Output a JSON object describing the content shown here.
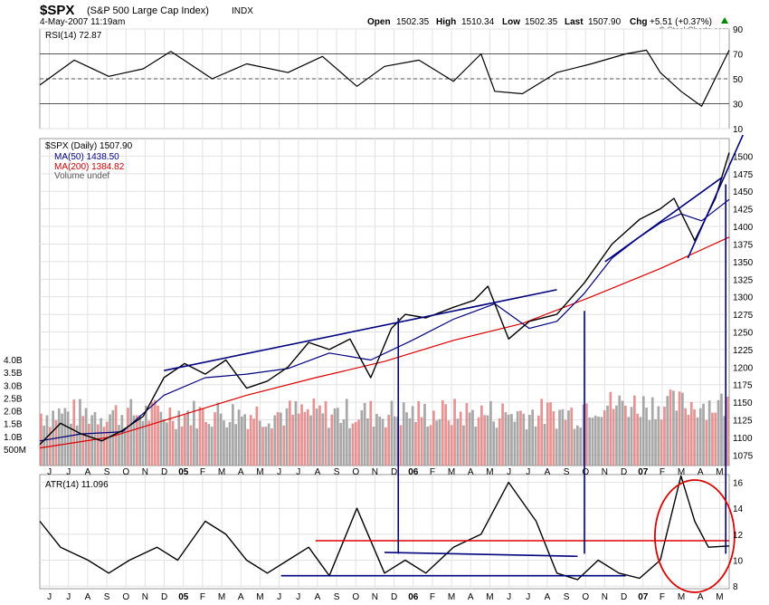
{
  "header": {
    "symbol": "$SPX",
    "name": "(S&P 500 Large Cap Index)",
    "exchange": "INDX",
    "timestamp": "4-May-2007 11:19am",
    "open_label": "Open",
    "open": "1502.35",
    "high_label": "High",
    "high": "1510.34",
    "low_label": "Low",
    "low": "1502.35",
    "last_label": "Last",
    "last": "1507.90",
    "chg_label": "Chg",
    "chg": "+5.51 (+0.37%)",
    "brand": "© StockCharts.com"
  },
  "colors": {
    "price_up": "#000000",
    "price_down": "#cc0000",
    "ma50": "#000080",
    "ma200": "#dd0000",
    "volume": "#999999",
    "volume_red": "#e08080",
    "trendline": "#000080",
    "annotation_red": "#dd0000"
  },
  "chart_data": [
    {
      "type": "line",
      "panel": "rsi",
      "legend": "RSI(14) 72.87",
      "yticks": [
        "90",
        "70",
        "50",
        "30",
        "10"
      ],
      "ylim": [
        10,
        90
      ],
      "reference_lines": [
        70,
        50,
        30
      ],
      "series": [
        {
          "name": "RSI(14)",
          "x": [
            0,
            0.05,
            0.1,
            0.15,
            0.19,
            0.25,
            0.3,
            0.36,
            0.41,
            0.46,
            0.5,
            0.55,
            0.6,
            0.64,
            0.66,
            0.7,
            0.75,
            0.8,
            0.85,
            0.88,
            0.9,
            0.93,
            0.96,
            1.0
          ],
          "values": [
            45,
            65,
            52,
            58,
            72,
            50,
            62,
            55,
            68,
            44,
            60,
            65,
            48,
            70,
            40,
            38,
            55,
            62,
            70,
            73,
            55,
            40,
            28,
            73
          ]
        }
      ]
    },
    {
      "type": "line",
      "panel": "price",
      "title": "$SPX (Daily) 1507.90",
      "legend": [
        {
          "label": "MA(50) 1438.50",
          "color": "#000080"
        },
        {
          "label": "MA(200) 1384.82",
          "color": "#dd0000"
        },
        {
          "label": "Volume undef",
          "color": "#999999"
        }
      ],
      "ylim": [
        1060,
        1525
      ],
      "yticks": [
        1500,
        1475,
        1450,
        1425,
        1400,
        1375,
        1350,
        1325,
        1300,
        1275,
        1250,
        1225,
        1200,
        1175,
        1150,
        1125,
        1100,
        1075
      ],
      "volume_ticks": [
        "4.0B",
        "3.5B",
        "3.0B",
        "2.5B",
        "2.0B",
        "1.5B",
        "1.0B",
        "500M"
      ],
      "x_labels": [
        "J",
        "J",
        "A",
        "S",
        "O",
        "N",
        "D",
        "05",
        "F",
        "M",
        "A",
        "M",
        "J",
        "J",
        "A",
        "S",
        "O",
        "N",
        "D",
        "06",
        "F",
        "M",
        "A",
        "M",
        "J",
        "J",
        "A",
        "S",
        "O",
        "N",
        "D",
        "07",
        "F",
        "M",
        "A",
        "M"
      ],
      "series": [
        {
          "name": "$SPX",
          "x": [
            0,
            0.03,
            0.06,
            0.09,
            0.12,
            0.15,
            0.18,
            0.21,
            0.24,
            0.27,
            0.3,
            0.33,
            0.36,
            0.39,
            0.42,
            0.45,
            0.48,
            0.51,
            0.53,
            0.56,
            0.6,
            0.63,
            0.65,
            0.68,
            0.71,
            0.75,
            0.79,
            0.83,
            0.87,
            0.9,
            0.92,
            0.95,
            0.98,
            1.0
          ],
          "values": [
            1090,
            1120,
            1105,
            1095,
            1110,
            1130,
            1185,
            1205,
            1190,
            1210,
            1170,
            1180,
            1200,
            1235,
            1225,
            1240,
            1185,
            1255,
            1275,
            1270,
            1285,
            1295,
            1315,
            1240,
            1265,
            1275,
            1320,
            1375,
            1410,
            1425,
            1440,
            1380,
            1440,
            1505
          ]
        },
        {
          "name": "MA(50)",
          "x": [
            0,
            0.06,
            0.12,
            0.18,
            0.24,
            0.3,
            0.36,
            0.42,
            0.48,
            0.54,
            0.6,
            0.66,
            0.71,
            0.75,
            0.79,
            0.83,
            0.87,
            0.9,
            0.93,
            0.96,
            1.0
          ],
          "values": [
            1095,
            1105,
            1108,
            1160,
            1185,
            1190,
            1198,
            1220,
            1210,
            1238,
            1268,
            1290,
            1255,
            1265,
            1305,
            1355,
            1385,
            1405,
            1418,
            1408,
            1438.5
          ]
        },
        {
          "name": "MA(200)",
          "x": [
            0,
            0.1,
            0.2,
            0.3,
            0.4,
            0.5,
            0.6,
            0.7,
            0.8,
            0.9,
            1.0
          ],
          "values": [
            1085,
            1100,
            1130,
            1160,
            1185,
            1208,
            1238,
            1262,
            1300,
            1340,
            1384.82
          ]
        }
      ],
      "trendlines": [
        {
          "x": [
            0.18,
            0.75
          ],
          "values": [
            1195,
            1310
          ]
        },
        {
          "x": [
            0.82,
            0.99
          ],
          "values": [
            1350,
            1470
          ]
        },
        {
          "x": [
            0.94,
            1.02
          ],
          "values": [
            1355,
            1530
          ]
        }
      ]
    },
    {
      "type": "line",
      "panel": "atr",
      "legend": "ATR(14) 11.096",
      "yticks": [
        "16",
        "14",
        "12",
        "10",
        "8"
      ],
      "ylim": [
        7.8,
        16.6
      ],
      "x_labels": [
        "J",
        "J",
        "A",
        "S",
        "O",
        "N",
        "D",
        "05",
        "F",
        "M",
        "A",
        "M",
        "J",
        "J",
        "A",
        "S",
        "O",
        "N",
        "D",
        "06",
        "F",
        "M",
        "A",
        "M",
        "J",
        "J",
        "A",
        "S",
        "O",
        "N",
        "D",
        "07",
        "F",
        "M",
        "A",
        "M"
      ],
      "series": [
        {
          "name": "ATR(14)",
          "x": [
            0,
            0.03,
            0.07,
            0.1,
            0.13,
            0.17,
            0.2,
            0.24,
            0.27,
            0.3,
            0.33,
            0.36,
            0.39,
            0.42,
            0.46,
            0.5,
            0.53,
            0.56,
            0.6,
            0.64,
            0.68,
            0.72,
            0.75,
            0.78,
            0.81,
            0.84,
            0.87,
            0.9,
            0.93,
            0.95,
            0.97,
            1.0
          ],
          "values": [
            13,
            11,
            10,
            9,
            10,
            11,
            10,
            13,
            12,
            10,
            9,
            10,
            11,
            8.8,
            14,
            9,
            10,
            9,
            11,
            12,
            16,
            13,
            9,
            8.5,
            10,
            9,
            8.6,
            10,
            16.5,
            13,
            11,
            11.1
          ]
        }
      ],
      "trendlines": [
        {
          "x": [
            0.4,
            1.0
          ],
          "values": [
            11.5,
            11.5
          ],
          "color": "red"
        },
        {
          "x": [
            0.5,
            0.78
          ],
          "values": [
            10.6,
            10.3
          ]
        },
        {
          "x": [
            0.35,
            0.85
          ],
          "values": [
            8.8,
            8.8
          ]
        }
      ]
    }
  ]
}
